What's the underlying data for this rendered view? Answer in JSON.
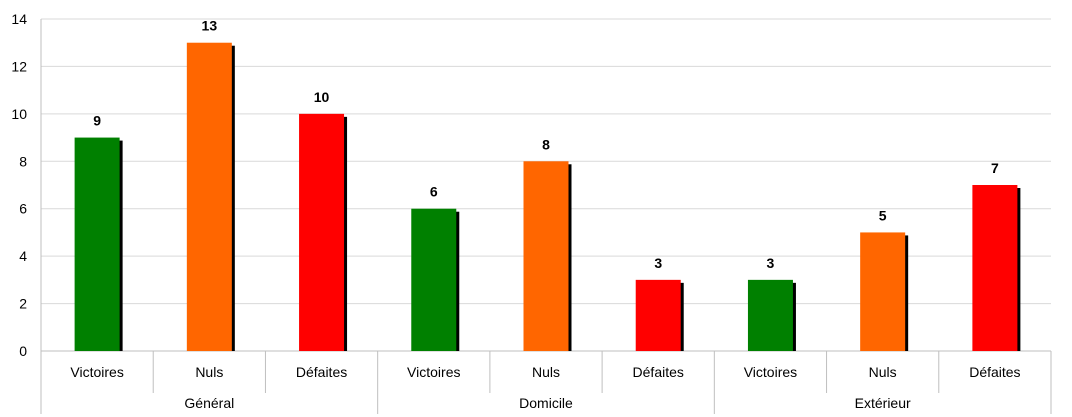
{
  "chart_data": {
    "type": "bar",
    "ylim": [
      0,
      14
    ],
    "yticks": [
      0,
      2,
      4,
      6,
      8,
      10,
      12,
      14
    ],
    "grid": true,
    "legend": "none",
    "groups": [
      {
        "name": "Général",
        "bars": [
          {
            "category": "Victoires",
            "value": 9,
            "color": "#008000"
          },
          {
            "category": "Nuls",
            "value": 13,
            "color": "#ff6600"
          },
          {
            "category": "Défaites",
            "value": 10,
            "color": "#ff0000"
          }
        ]
      },
      {
        "name": "Domicile",
        "bars": [
          {
            "category": "Victoires",
            "value": 6,
            "color": "#008000"
          },
          {
            "category": "Nuls",
            "value": 8,
            "color": "#ff6600"
          },
          {
            "category": "Défaites",
            "value": 3,
            "color": "#ff0000"
          }
        ]
      },
      {
        "name": "Extérieur",
        "bars": [
          {
            "category": "Victoires",
            "value": 3,
            "color": "#008000"
          },
          {
            "category": "Nuls",
            "value": 5,
            "color": "#ff6600"
          },
          {
            "category": "Défaites",
            "value": 7,
            "color": "#ff0000"
          }
        ]
      }
    ]
  }
}
